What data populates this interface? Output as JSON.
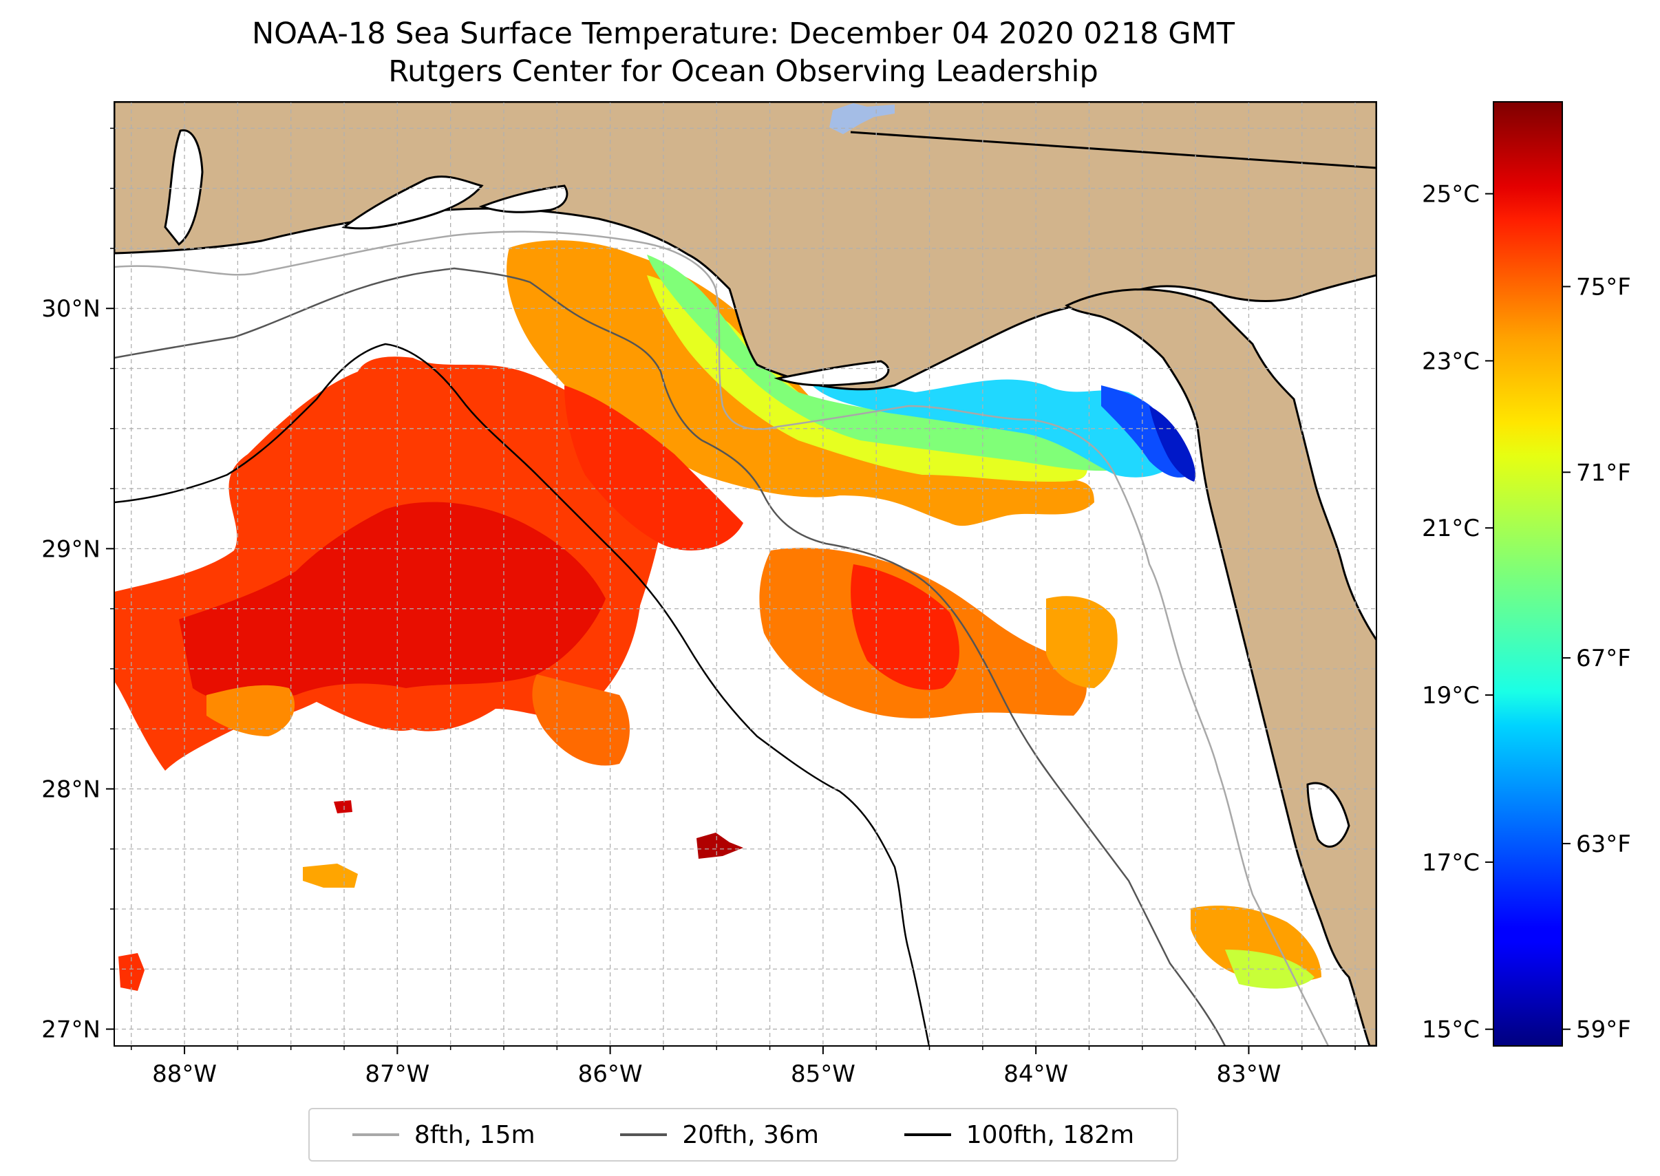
{
  "title": {
    "line1": "NOAA-18 Sea Surface Temperature: December 04 2020 0218 GMT",
    "line2": "Rutgers Center for Ocean Observing Leadership"
  },
  "map": {
    "lon_range": [
      -88.33,
      -82.4
    ],
    "lat_range": [
      26.93,
      30.86
    ],
    "lon_ticks": [
      {
        "value": -88,
        "label": "88°W"
      },
      {
        "value": -87,
        "label": "87°W"
      },
      {
        "value": -86,
        "label": "86°W"
      },
      {
        "value": -85,
        "label": "85°W"
      },
      {
        "value": -84,
        "label": "84°W"
      },
      {
        "value": -83,
        "label": "83°W"
      }
    ],
    "lat_ticks": [
      {
        "value": 27,
        "label": "27°N"
      },
      {
        "value": 28,
        "label": "28°N"
      },
      {
        "value": 29,
        "label": "29°N"
      },
      {
        "value": 30,
        "label": "30°N"
      }
    ],
    "grid": true,
    "grid_step_deg": 0.25,
    "colors": {
      "land": "#d2b48c",
      "ocean_nodata": "#ffffff",
      "inland_water": "#a4bde6"
    }
  },
  "colorbar": {
    "colormap": "jet",
    "celsius_range": [
      14.8,
      26.1
    ],
    "celsius_ticks": [
      {
        "value": 15,
        "label": "15°C"
      },
      {
        "value": 17,
        "label": "17°C"
      },
      {
        "value": 19,
        "label": "19°C"
      },
      {
        "value": 21,
        "label": "21°C"
      },
      {
        "value": 23,
        "label": "23°C"
      },
      {
        "value": 25,
        "label": "25°C"
      }
    ],
    "fahrenheit_ticks": [
      {
        "value": 59,
        "label": "59°F"
      },
      {
        "value": 63,
        "label": "63°F"
      },
      {
        "value": 67,
        "label": "67°F"
      },
      {
        "value": 71,
        "label": "71°F"
      },
      {
        "value": 75,
        "label": "75°F"
      }
    ]
  },
  "legend": {
    "placement": "bottom-center",
    "items": [
      {
        "label": "8fth, 15m",
        "color": "#a8a8a8"
      },
      {
        "label": "20fth, 36m",
        "color": "#555555"
      },
      {
        "label": "100fth, 182m",
        "color": "#000000"
      }
    ]
  }
}
